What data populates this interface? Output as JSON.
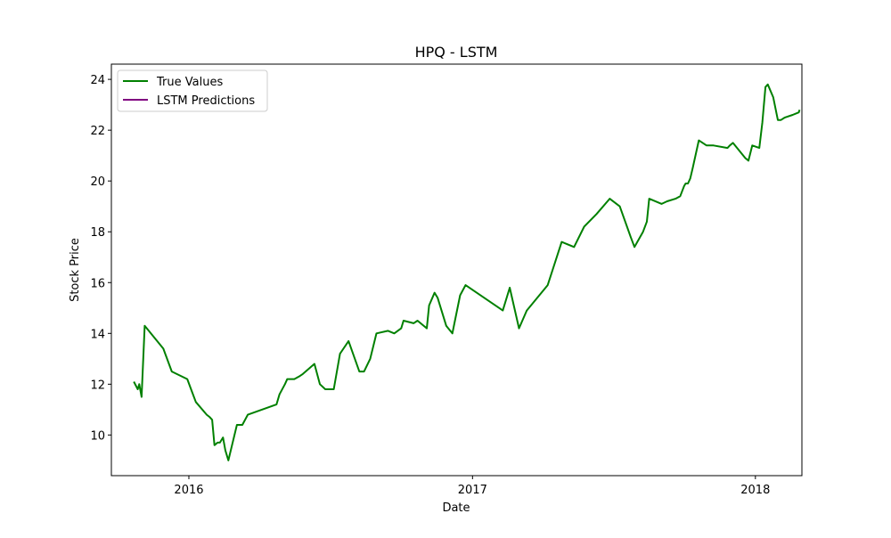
{
  "chart_data": {
    "type": "line",
    "title": "HPQ - LSTM",
    "xlabel": "Date",
    "ylabel": "Stock Price",
    "x_ticks": [
      "2016",
      "2017",
      "2018"
    ],
    "y_ticks": [
      "10",
      "12",
      "14",
      "16",
      "18",
      "20",
      "22",
      "24"
    ],
    "y_tick_values": [
      10,
      12,
      14,
      16,
      18,
      20,
      22,
      24
    ],
    "x_tick_values": [
      "2016-01-01",
      "2017-01-01",
      "2018-01-01"
    ],
    "xlim": [
      "2015-09-23",
      "2018-03-02"
    ],
    "ylim": [
      8.4,
      24.6
    ],
    "grid": false,
    "legend_position": "upper left",
    "series": [
      {
        "name": "True Values",
        "color": "#008000",
        "x": [
          "2015-10-22",
          "2015-10-27",
          "2015-10-29",
          "2015-11-01",
          "2015-11-05",
          "2015-11-29",
          "2015-12-10",
          "2015-12-30",
          "2016-01-05",
          "2016-01-10",
          "2016-01-24",
          "2016-01-28",
          "2016-01-31",
          "2016-02-03",
          "2016-02-07",
          "2016-02-10",
          "2016-02-14",
          "2016-02-17",
          "2016-02-21",
          "2016-03-03",
          "2016-03-10",
          "2016-03-17",
          "2016-04-23",
          "2016-04-27",
          "2016-05-04",
          "2016-05-07",
          "2016-05-11",
          "2016-05-16",
          "2016-05-22",
          "2016-05-27",
          "2016-06-11",
          "2016-06-18",
          "2016-06-25",
          "2016-07-06",
          "2016-07-14",
          "2016-07-25",
          "2016-08-08",
          "2016-08-14",
          "2016-08-22",
          "2016-08-30",
          "2016-09-14",
          "2016-09-22",
          "2016-10-01",
          "2016-10-04",
          "2016-10-17",
          "2016-10-22",
          "2016-11-03",
          "2016-11-06",
          "2016-11-13",
          "2016-11-17",
          "2016-11-28",
          "2016-12-06",
          "2016-12-16",
          "2016-12-23",
          "2017-02-09",
          "2017-02-18",
          "2017-03-02",
          "2017-03-12",
          "2017-04-08",
          "2017-04-26",
          "2017-05-12",
          "2017-05-25",
          "2017-06-10",
          "2017-06-27",
          "2017-07-10",
          "2017-07-24",
          "2017-07-29",
          "2017-08-09",
          "2017-08-14",
          "2017-08-17",
          "2017-09-02",
          "2017-09-09",
          "2017-09-20",
          "2017-09-26",
          "2017-10-01",
          "2017-10-03",
          "2017-10-06",
          "2017-10-09",
          "2017-10-12",
          "2017-10-20",
          "2017-10-30",
          "2017-11-08",
          "2017-11-26",
          "2017-11-29",
          "2017-12-03",
          "2017-12-19",
          "2017-12-23",
          "2017-12-28",
          "2018-01-06",
          "2018-01-10",
          "2018-01-14",
          "2018-01-17",
          "2018-01-24",
          "2018-01-30",
          "2018-02-03",
          "2018-02-08",
          "2018-02-18",
          "2018-02-26",
          "2018-02-27"
        ],
        "y": [
          12.1,
          11.8,
          12.0,
          11.5,
          14.3,
          13.4,
          12.5,
          12.2,
          11.7,
          11.3,
          10.8,
          10.7,
          10.6,
          9.6,
          9.7,
          9.7,
          9.9,
          9.4,
          9.0,
          10.4,
          10.4,
          10.8,
          11.2,
          11.6,
          12.0,
          12.2,
          12.2,
          12.2,
          12.3,
          12.4,
          12.8,
          12.0,
          11.8,
          11.8,
          13.2,
          13.7,
          12.5,
          12.5,
          13.0,
          14.0,
          14.1,
          14.0,
          14.2,
          14.5,
          14.4,
          14.5,
          14.2,
          15.1,
          15.6,
          15.4,
          14.3,
          14.0,
          15.5,
          15.9,
          14.9,
          15.8,
          14.2,
          14.9,
          15.9,
          17.6,
          17.4,
          18.2,
          18.7,
          19.3,
          19.0,
          17.8,
          17.4,
          18.0,
          18.4,
          19.3,
          19.1,
          19.2,
          19.3,
          19.4,
          19.8,
          19.9,
          19.9,
          20.1,
          20.5,
          21.6,
          21.4,
          21.4,
          21.3,
          21.4,
          21.5,
          20.9,
          20.8,
          21.4,
          21.3,
          22.3,
          23.7,
          23.8,
          23.3,
          22.4,
          22.4,
          22.5,
          22.6,
          22.7,
          22.8
        ],
        "x_display": [
          "2015-10-22",
          "2015-10-28",
          "2015-11-01",
          "2015-11-03",
          "2016-02-03",
          "2016-02-10",
          "2016-02-13"
        ]
      },
      {
        "name": "LSTM Predictions",
        "color": "#800080"
      }
    ]
  }
}
